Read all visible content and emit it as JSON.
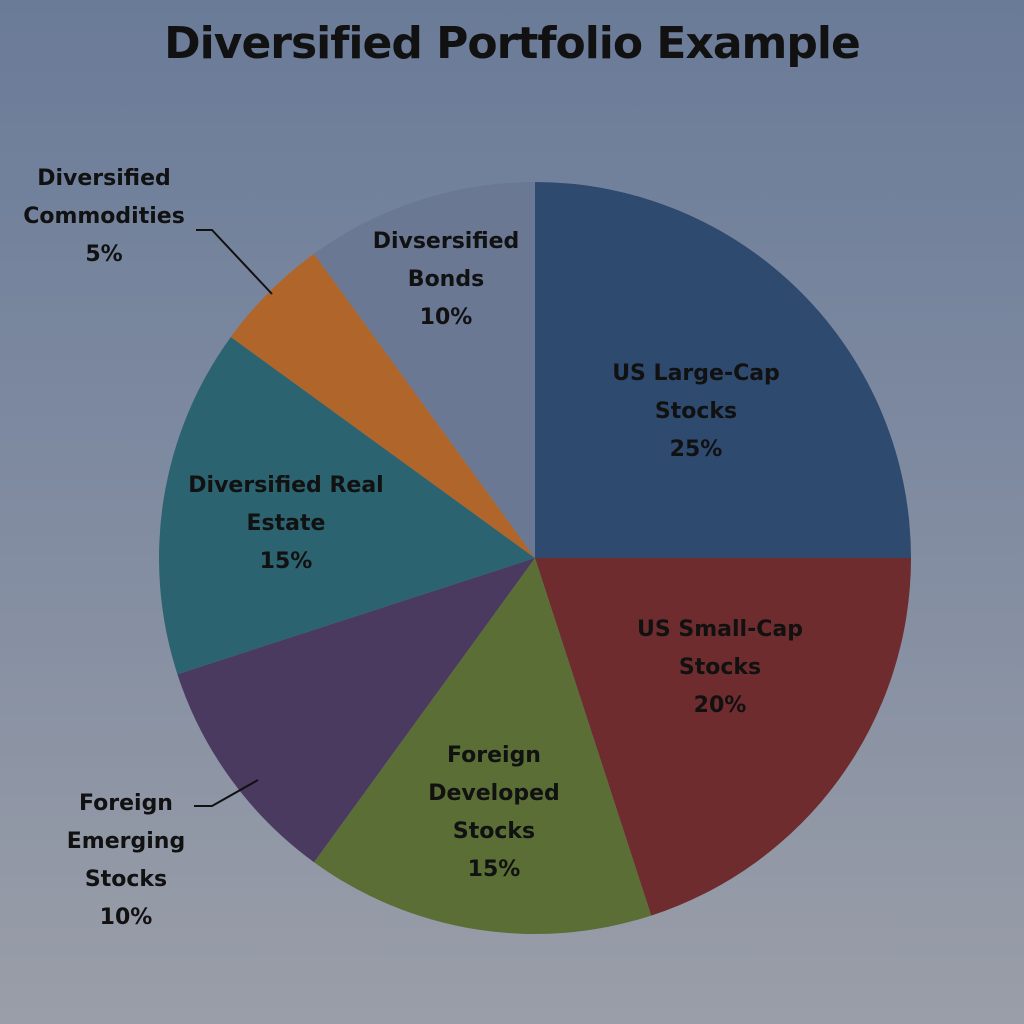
{
  "chart_data": {
    "type": "pie",
    "title": "Diversified Portfolio Example",
    "slices": [
      {
        "label": [
          "US Large-Cap",
          "Stocks"
        ],
        "pct_text": "25%",
        "value": 25,
        "color": "#2e4a6e"
      },
      {
        "label": [
          "US Small-Cap",
          "Stocks"
        ],
        "pct_text": "20%",
        "value": 20,
        "color": "#6e2c2e"
      },
      {
        "label": [
          "Foreign",
          "Developed",
          "Stocks"
        ],
        "pct_text": "15%",
        "value": 15,
        "color": "#5a6e36"
      },
      {
        "label": [
          "Foreign",
          "Emerging",
          "Stocks"
        ],
        "pct_text": "10%",
        "value": 10,
        "color": "#4a3a60"
      },
      {
        "label": [
          "Diversified Real",
          "Estate"
        ],
        "pct_text": "15%",
        "value": 15,
        "color": "#2c6370"
      },
      {
        "label": [
          "Diversified",
          "Commodities"
        ],
        "pct_text": "5%",
        "value": 5,
        "color": "#b0662a"
      },
      {
        "label": [
          "Divsersified",
          "Bonds"
        ],
        "pct_text": "10%",
        "value": 10,
        "color": "#6a7894"
      }
    ],
    "start_angle": "12 o'clock",
    "direction": "clockwise",
    "legend": "none"
  }
}
